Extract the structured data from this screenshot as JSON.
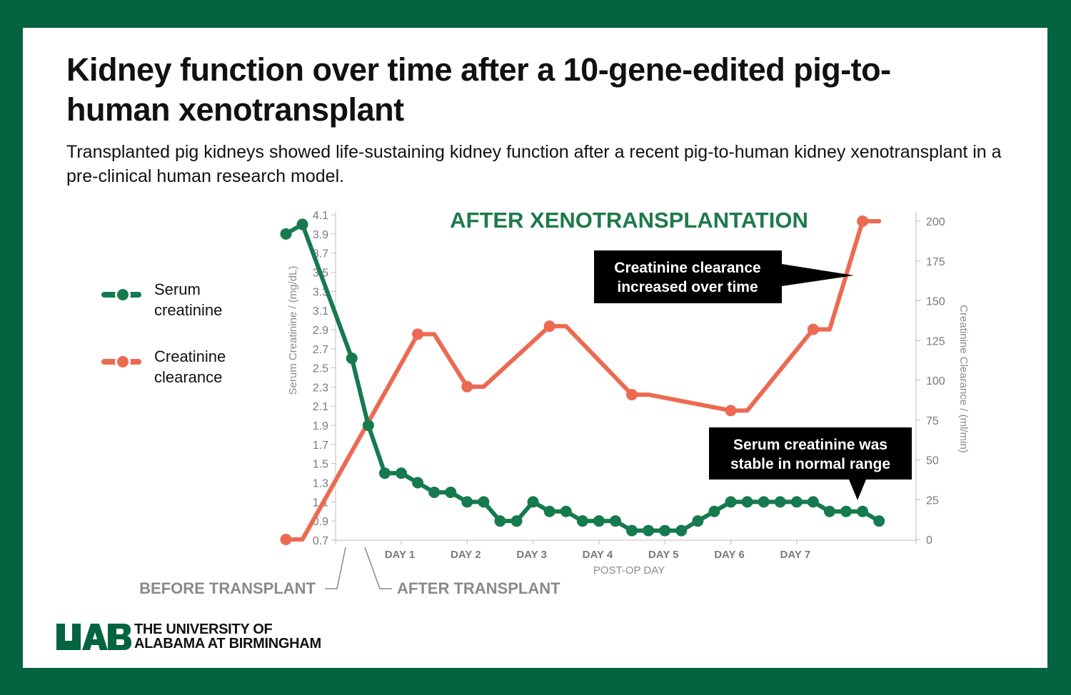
{
  "header": {
    "title": "Kidney function over time after a 10-gene-edited pig-to-human xenotransplant",
    "subtitle": "Transplanted pig kidneys showed life-sustaining kidney function after a recent pig-to-human kidney xenotransplant in a pre-clinical human research model."
  },
  "legend": {
    "serum_label": "Serum creatinine",
    "clearance_label": "Creatinine clearance"
  },
  "colors": {
    "background": "#04643f",
    "serum": "#167a4f",
    "clearance": "#ec6a52",
    "axis_text": "#7a7a7a",
    "heading": "#1f7a4c"
  },
  "chart_data": {
    "type": "line",
    "title": "AFTER XENOTRANSPLANTATION",
    "xlabel": "POST-OP DAY",
    "ylabel": "Serum Creatinine / (mg/dL)",
    "y2label": "Creatinine Clearance / (ml/min)",
    "ylim": [
      0.7,
      4.1
    ],
    "y2lim": [
      0,
      200
    ],
    "yticks": [
      "4.1",
      "3.9",
      "3.7",
      "3.5",
      "3.3",
      "3.1",
      "2.9",
      "2.7",
      "2.5",
      "2.3",
      "2.1",
      "1.9",
      "1.7",
      "1.5",
      "1.3",
      "1.1",
      "0.9",
      "0.7"
    ],
    "y2ticks": [
      "200",
      "175",
      "150",
      "125",
      "100",
      "75",
      "50",
      "25",
      "0"
    ],
    "day_labels": [
      {
        "label": "DAY 1",
        "day": 1
      },
      {
        "label": "DAY 2",
        "day": 2
      },
      {
        "label": "DAY 3",
        "day": 3
      },
      {
        "label": "DAY 4",
        "day": 4
      },
      {
        "label": "DAY 5",
        "day": 5
      },
      {
        "label": "DAY 6",
        "day": 6
      },
      {
        "label": "DAY 7",
        "day": 7
      }
    ],
    "series": [
      {
        "name": "Serum creatinine",
        "axis": "left",
        "color": "#167a4f",
        "points": [
          [
            -0.75,
            3.9
          ],
          [
            -0.5,
            4.0
          ],
          [
            0.25,
            2.6
          ],
          [
            0.5,
            1.9
          ],
          [
            0.75,
            1.4
          ],
          [
            1.0,
            1.4
          ],
          [
            1.25,
            1.3
          ],
          [
            1.5,
            1.2
          ],
          [
            1.75,
            1.2
          ],
          [
            2.0,
            1.1
          ],
          [
            2.25,
            1.1
          ],
          [
            2.5,
            0.9
          ],
          [
            2.75,
            0.9
          ],
          [
            3.0,
            1.1
          ],
          [
            3.25,
            1.0
          ],
          [
            3.5,
            1.0
          ],
          [
            3.75,
            0.9
          ],
          [
            4.0,
            0.9
          ],
          [
            4.25,
            0.9
          ],
          [
            4.5,
            0.8
          ],
          [
            4.75,
            0.8
          ],
          [
            5.0,
            0.8
          ],
          [
            5.25,
            0.8
          ],
          [
            5.5,
            0.9
          ],
          [
            5.75,
            1.0
          ],
          [
            6.0,
            1.1
          ],
          [
            6.25,
            1.1
          ],
          [
            6.5,
            1.1
          ],
          [
            6.75,
            1.1
          ],
          [
            7.0,
            1.1
          ],
          [
            7.25,
            1.1
          ],
          [
            7.5,
            1.0
          ],
          [
            7.75,
            1.0
          ],
          [
            8.0,
            1.0
          ],
          [
            8.25,
            0.9
          ]
        ]
      },
      {
        "name": "Creatinine clearance",
        "axis": "right",
        "color": "#ec6a52",
        "markers": [
          [
            -0.75,
            0
          ],
          [
            1.25,
            129
          ],
          [
            2.0,
            96
          ],
          [
            3.25,
            134
          ],
          [
            4.5,
            91
          ],
          [
            6.0,
            81
          ],
          [
            7.25,
            132
          ],
          [
            8.0,
            200
          ]
        ],
        "points": [
          [
            -0.75,
            0
          ],
          [
            -0.5,
            0
          ],
          [
            1.25,
            129
          ],
          [
            1.5,
            129
          ],
          [
            2.0,
            96
          ],
          [
            2.25,
            96
          ],
          [
            3.25,
            134
          ],
          [
            3.5,
            134
          ],
          [
            4.5,
            91
          ],
          [
            4.75,
            91
          ],
          [
            6.0,
            81
          ],
          [
            6.25,
            81
          ],
          [
            7.25,
            132
          ],
          [
            7.5,
            132
          ],
          [
            8.0,
            200
          ],
          [
            8.25,
            200
          ]
        ]
      }
    ],
    "annotations": {
      "clearance_note": "Creatinine clearance increased over time",
      "serum_note": "Serum creatinine was stable in normal range",
      "before_transplant": "BEFORE TRANSPLANT",
      "after_transplant": "AFTER TRANSPLANT"
    },
    "grid": false,
    "legend_position": "left"
  },
  "footer": {
    "logo_mark": "UAB",
    "institution_line1": "THE UNIVERSITY OF",
    "institution_line2": "ALABAMA AT BIRMINGHAM"
  }
}
